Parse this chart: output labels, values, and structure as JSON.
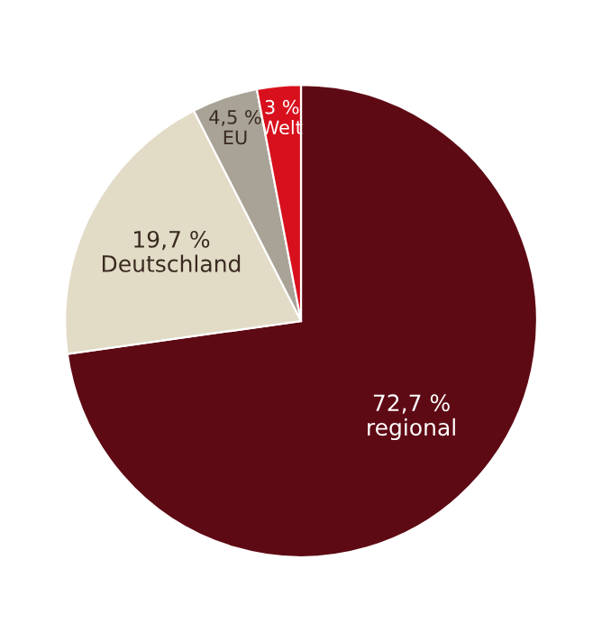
{
  "chart_data": {
    "type": "pie",
    "categories": [
      "regional",
      "Deutschland",
      "EU",
      "Welt"
    ],
    "values": [
      72.7,
      19.7,
      4.5,
      3
    ],
    "value_labels": [
      "72,7 %",
      "19,7 %",
      "4,5 %",
      "3 %"
    ],
    "colors": [
      "#5e0a14",
      "#e2dbc6",
      "#a9a397",
      "#d8101d"
    ],
    "legend": false
  }
}
